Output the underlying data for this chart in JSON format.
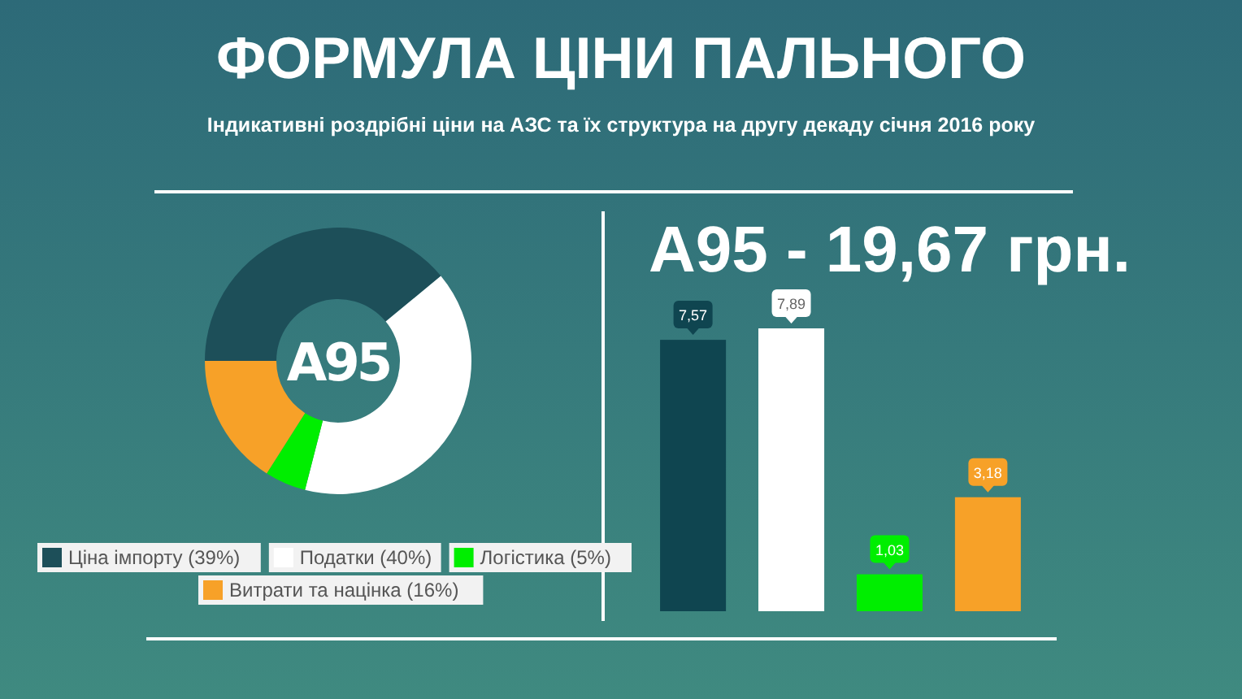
{
  "chart_data": [
    {
      "type": "donut",
      "title": "ФОРМУЛА ЦІНИ ПАЛЬНОГО",
      "subtitle": "Індикативні роздрібні ціни на АЗС  та їх структура на другу декаду січня 2016 року",
      "categories": [
        "Ціна імпорту (39%)",
        "Податки (40%)",
        "Логістика (5%)",
        "Витрати та націнка (16%)"
      ],
      "values": [
        39,
        40,
        5,
        16
      ],
      "colors": [
        "#1d4f59",
        "#ffffff",
        "#00ee00",
        "#f7a128"
      ],
      "annotations": [
        "A95"
      ],
      "legend": "bottom"
    },
    {
      "type": "bar",
      "title": "A95 - 19,67 грн.",
      "categories": [
        null,
        null,
        null,
        null
      ],
      "values": [
        7.57,
        7.89,
        1.03,
        3.18
      ],
      "colors": [
        "#0f4550",
        "#ffffff",
        "#00ee00",
        "#f7a128"
      ],
      "value_labels": [
        "7,57",
        "7,89",
        "1,03",
        "3,18"
      ]
    }
  ]
}
